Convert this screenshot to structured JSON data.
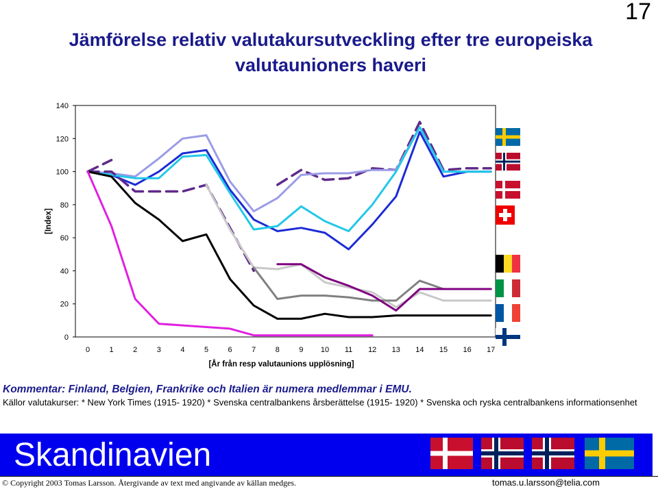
{
  "slide_number": "17",
  "title_line1": "Jämförelse relativ valutakursutveckling efter tre europeiska",
  "title_line2": "valutaunioners haveri",
  "comment": "Kommentar: Finland, Belgien, Frankrike och Italien är numera medlemmar i EMU.",
  "sources": "Källor valutakurser: * New York Times (1915- 1920) * Svenska centralbankens årsberättelse (1915- 1920) * Svenska och ryska centralbankens informationsenhet",
  "banner": {
    "text": "Skandinavien",
    "flags": [
      "denmark-flag",
      "norway-flag",
      "norway-flag",
      "sweden-flag"
    ]
  },
  "footer": {
    "copyright": "©  Copyright 2003 Tomas Larsson.  Återgivande av text med angivande av källan medges.",
    "email": "tomas.u.larsson@telia.com"
  },
  "colors": {
    "title": "#1a1a8c",
    "banner": "#0000ee",
    "sweden": "#5f2a8a",
    "norway": "#9b9be8",
    "denmark": "#1b2bd6",
    "switzerland": "#22c8e8",
    "belgium": "#808080",
    "italy": "#800080",
    "france": "#c8c8c8",
    "black_series": "#000000",
    "magenta_series": "#e020e0"
  },
  "chart_data": {
    "type": "line",
    "ylabel": "[Index]",
    "xlabel": "[År från resp valutaunions upplösning]",
    "ylim": [
      0,
      140
    ],
    "yticks": [
      0,
      20,
      40,
      60,
      80,
      100,
      120,
      140
    ],
    "x": [
      0,
      1,
      2,
      3,
      4,
      5,
      6,
      7,
      8,
      9,
      10,
      11,
      12,
      13,
      14,
      15,
      16,
      17
    ],
    "grid": false,
    "legend": "flags at right",
    "series": [
      {
        "flag": "sweden",
        "color": "#5f2a8a",
        "style": "dashed",
        "width": 3.5,
        "values": [
          100,
          107,
          null,
          null,
          null,
          null,
          null,
          null,
          92,
          101,
          95,
          96,
          102,
          101,
          130,
          101,
          102,
          102
        ]
      },
      {
        "flag": "norway",
        "color": "#9b9be8",
        "style": "solid",
        "width": 3,
        "values": [
          100,
          99,
          97,
          108,
          120,
          122,
          94,
          76,
          84,
          98,
          99,
          99,
          101,
          101,
          127,
          100,
          100,
          100
        ]
      },
      {
        "flag": "denmark",
        "color": "#1b2bd6",
        "style": "solid",
        "width": 3,
        "values": [
          100,
          98,
          92,
          100,
          111,
          113,
          89,
          71,
          64,
          66,
          63,
          53,
          68,
          85,
          124,
          97,
          100,
          100
        ]
      },
      {
        "flag": "switzerland",
        "color": "#22c8e8",
        "style": "solid",
        "width": 3,
        "values": [
          100,
          98,
          96,
          96,
          109,
          110,
          87,
          65,
          67,
          79,
          70,
          64,
          80,
          100,
          127,
          100,
          100,
          100
        ]
      },
      {
        "flag": "sweden-dashed-lower",
        "color": "#5f2a8a",
        "style": "dashed",
        "width": 3.5,
        "values": [
          100,
          100,
          88,
          88,
          88,
          92,
          66,
          40,
          null,
          null,
          null,
          null,
          null,
          null,
          null,
          null,
          null,
          null
        ]
      },
      {
        "flag": "france",
        "color": "#c8c8c8",
        "style": "solid",
        "width": 3,
        "values": [
          null,
          null,
          null,
          null,
          null,
          92,
          65,
          42,
          41,
          44,
          33,
          30,
          27,
          18,
          27,
          22,
          22,
          22
        ]
      },
      {
        "flag": "belgium",
        "color": "#808080",
        "style": "solid",
        "width": 3,
        "values": [
          null,
          null,
          null,
          null,
          null,
          null,
          null,
          42,
          23,
          25,
          25,
          24,
          22,
          22,
          34,
          29,
          29,
          29
        ]
      },
      {
        "flag": "italy",
        "color": "#800080",
        "style": "solid",
        "width": 3,
        "values": [
          null,
          null,
          null,
          null,
          null,
          null,
          null,
          null,
          44,
          44,
          36,
          31,
          25,
          16,
          29,
          29,
          29,
          29
        ]
      },
      {
        "flag": "black",
        "color": "#000000",
        "style": "solid",
        "width": 3,
        "values": [
          100,
          97,
          81,
          71,
          58,
          62,
          35,
          19,
          11,
          11,
          14,
          12,
          12,
          13,
          13,
          13,
          13,
          13
        ]
      },
      {
        "flag": "magenta",
        "color": "#e020e0",
        "style": "solid",
        "width": 3,
        "values": [
          100,
          67,
          23,
          8,
          7,
          6,
          5,
          1,
          1,
          1,
          1,
          1,
          1,
          null,
          null,
          null,
          null,
          null
        ]
      }
    ],
    "legend_flags": [
      "sweden",
      "norway",
      "denmark",
      "switzerland",
      "belgium",
      "italy",
      "france",
      "finland"
    ]
  }
}
